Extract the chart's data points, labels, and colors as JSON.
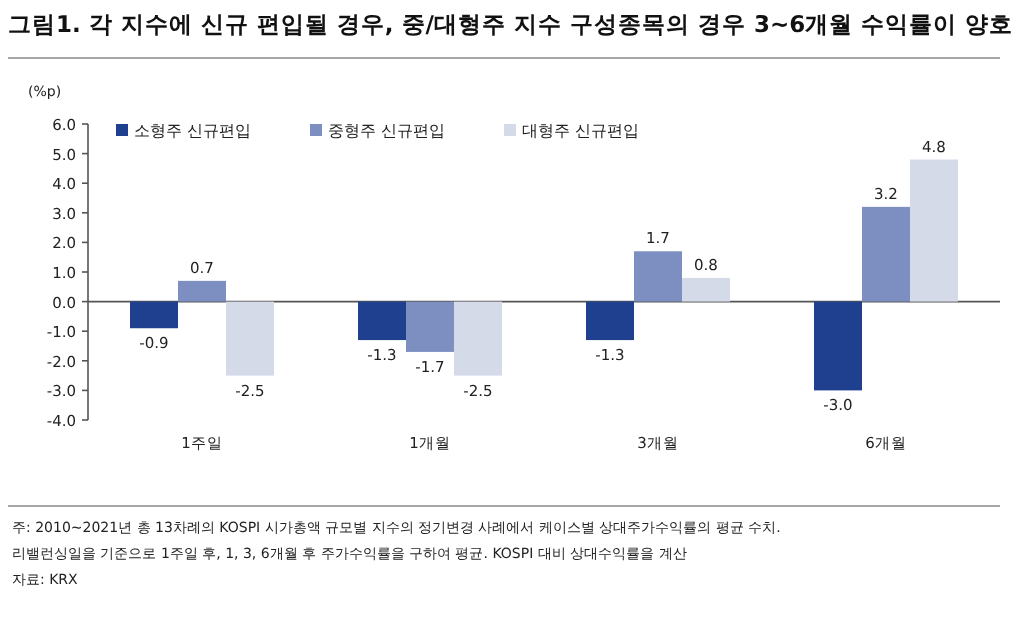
{
  "chart_data": {
    "type": "bar",
    "title": "그림1. 각 지수에 신규 편입될 경우, 중/대형주 지수 구성종목의 경우 3~6개월 수익률이 양호",
    "ylabel": "(%p)",
    "categories": [
      "1주일",
      "1개월",
      "3개월",
      "6개월"
    ],
    "series": [
      {
        "name": "소형주 신규편입",
        "color": "#1f3f8f",
        "values": [
          -0.9,
          -1.3,
          -1.3,
          -3.0
        ],
        "value_labels": [
          "-0.9",
          "-1.3",
          "-1.3",
          "-3.0"
        ]
      },
      {
        "name": "중형주 신규편입",
        "color": "#7d8fc0",
        "values": [
          0.7,
          -1.7,
          1.7,
          3.2
        ],
        "value_labels": [
          "0.7",
          "-1.7",
          "1.7",
          "3.2"
        ]
      },
      {
        "name": "대형주 신규편입",
        "color": "#d4dae8",
        "values": [
          -2.5,
          -2.5,
          0.8,
          4.8
        ],
        "value_labels": [
          "-2.5",
          "-2.5",
          "0.8",
          "4.8"
        ]
      }
    ],
    "ylim": [
      -4,
      6
    ],
    "yticks": [
      {
        "value": -4,
        "label": "-4.0"
      },
      {
        "value": -3,
        "label": "-3.0"
      },
      {
        "value": -2,
        "label": "-2.0"
      },
      {
        "value": -1,
        "label": "-1.0"
      },
      {
        "value": 0,
        "label": "0.0"
      },
      {
        "value": 1,
        "label": "1.0"
      },
      {
        "value": 2,
        "label": "2.0"
      },
      {
        "value": 3,
        "label": "3.0"
      },
      {
        "value": 4,
        "label": "4.0"
      },
      {
        "value": 5,
        "label": "5.0"
      },
      {
        "value": 6,
        "label": "6.0"
      }
    ],
    "legend": "top left",
    "annotations": [
      "주: 2010~2021년 총 13차례의 KOSPI 시가총액 규모별 지수의 정기변경 사례에서 케이스별 상대주가수익률의 평균 수치.",
      "리밸런싱일을 기준으로 1주일 후, 1, 3, 6개월 후 주가수익률을 구하여 평균. KOSPI 대비 상대수익률을 계산",
      "자료: KRX"
    ]
  }
}
